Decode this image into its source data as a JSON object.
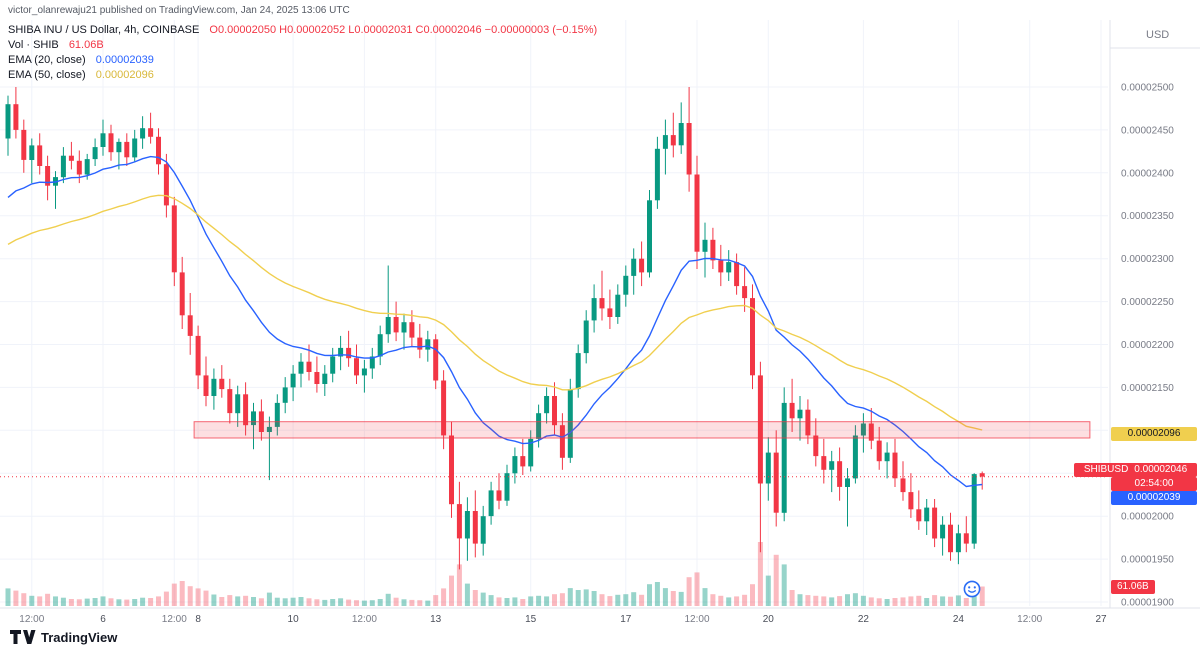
{
  "attribution": "victor_olanrewaju21 published on TradingView.com, Jan 24, 2025 13:06 UTC",
  "watermark": "TradingView",
  "legend": {
    "symbol_title": "SHIBA INU / US Dollar, 4h, COINBASE",
    "ohlc_string": "O0.00002050  H0.00002052  L0.00002031  C0.00002046  −0.00000003 (−0.15%)",
    "volume_label": "Vol · SHIB",
    "volume_value": "61.06B",
    "ema20_label": "EMA (20, close)",
    "ema20_value": "0.00002039",
    "ema50_label": "EMA (50, close)",
    "ema50_value": "0.00002096"
  },
  "price_axis": {
    "currency_label": "USD",
    "labels": [
      {
        "p": 2500,
        "label": "0.00002500"
      },
      {
        "p": 2450,
        "label": "0.00002450"
      },
      {
        "p": 2400,
        "label": "0.00002400"
      },
      {
        "p": 2350,
        "label": "0.00002350"
      },
      {
        "p": 2300,
        "label": "0.00002300"
      },
      {
        "p": 2250,
        "label": "0.00002250"
      },
      {
        "p": 2200,
        "label": "0.00002200"
      },
      {
        "p": 2150,
        "label": "0.00002150"
      },
      {
        "p": 2000,
        "label": "0.00002000"
      },
      {
        "p": 1950,
        "label": "0.00001950"
      },
      {
        "p": 1900,
        "label": "0.00001900"
      }
    ],
    "ema50_badge": {
      "text": "0.00002096"
    },
    "price_badge": {
      "symbol": "SHIBUSD",
      "text": "0.00002046"
    },
    "countdown_badge": {
      "text": "02:54:00"
    },
    "ema20_badge": {
      "text": "0.00002039"
    },
    "volume_badge": {
      "text": "61.06B"
    }
  },
  "time_axis": {
    "ticks": [
      {
        "i": 3,
        "label": "12:00",
        "minor": true
      },
      {
        "i": 12,
        "label": "6"
      },
      {
        "i": 21,
        "label": "12:00",
        "minor": true
      },
      {
        "i": 24,
        "label": "8"
      },
      {
        "i": 36,
        "label": "10"
      },
      {
        "i": 45,
        "label": "12:00",
        "minor": true
      },
      {
        "i": 54,
        "label": "13"
      },
      {
        "i": 66,
        "label": "15"
      },
      {
        "i": 78,
        "label": "17"
      },
      {
        "i": 87,
        "label": "12:00",
        "minor": true
      },
      {
        "i": 96,
        "label": "20"
      },
      {
        "i": 108,
        "label": "22"
      },
      {
        "i": 120,
        "label": "24"
      },
      {
        "i": 129,
        "label": "12:00",
        "minor": true
      },
      {
        "i": 138,
        "label": "27"
      }
    ]
  },
  "colors": {
    "up": "#089981",
    "down": "#f23645",
    "ema20": "#2962ff",
    "ema50": "#f0cf4f",
    "grid": "#f0f3fa",
    "axis_text": "#787b86",
    "day_text": "#4a4e59",
    "separator": "#e0e3eb",
    "zone_fill": "rgba(242,54,69,0.16)",
    "zone_border": "#f23645"
  },
  "chart_data": {
    "type": "candlestick",
    "title": "SHIBA INU / US Dollar, 4h, COINBASE",
    "symbol": "SHIBUSD",
    "timeframe": "4h",
    "x_range": "Jan 4 2025 00:00 UTC – Jan 24 2025 16:00 UTC, one candle = 4h",
    "price_unit": "1e-8 USD (value 2046 represents 0.00002046)",
    "axis_range": {
      "min": "0.00001900",
      "max": "0.00002500",
      "step": "0.00000050"
    },
    "grid_prices": [
      2500,
      2450,
      2400,
      2350,
      2300,
      2250,
      2200,
      2150,
      2100,
      2050,
      2000,
      1950,
      1900
    ],
    "current_price": 2046,
    "last_volume_label": "61.06B",
    "zone": {
      "from_i": 23.5,
      "to_i": 136.6,
      "top_price": 2110,
      "bottom_price": 2091,
      "description": "horizontal supply/resistance box around 0.00002091–0.00002110"
    },
    "overlays": [
      {
        "name": "EMA20",
        "period": 20,
        "color": "#2962ff",
        "seed": 2360,
        "last": "0.00002039"
      },
      {
        "name": "EMA50",
        "period": 50,
        "color": "#f0cf4f",
        "seed": 2310,
        "last": "0.00002096"
      }
    ],
    "candles_format": "[open, high, low, close, volume_billions]",
    "candles": [
      [
        2440,
        2490,
        2420,
        2480,
        55
      ],
      [
        2480,
        2500,
        2440,
        2450,
        48
      ],
      [
        2450,
        2462,
        2400,
        2415,
        40
      ],
      [
        2415,
        2440,
        2388,
        2432,
        32
      ],
      [
        2432,
        2446,
        2398,
        2408,
        30
      ],
      [
        2408,
        2420,
        2368,
        2385,
        38
      ],
      [
        2385,
        2402,
        2358,
        2395,
        30
      ],
      [
        2395,
        2430,
        2388,
        2420,
        26
      ],
      [
        2420,
        2436,
        2404,
        2414,
        22
      ],
      [
        2414,
        2426,
        2388,
        2398,
        21
      ],
      [
        2398,
        2422,
        2392,
        2416,
        23
      ],
      [
        2416,
        2440,
        2408,
        2430,
        25
      ],
      [
        2430,
        2462,
        2420,
        2446,
        30
      ],
      [
        2446,
        2456,
        2414,
        2424,
        24
      ],
      [
        2424,
        2440,
        2404,
        2436,
        21
      ],
      [
        2436,
        2446,
        2408,
        2418,
        20
      ],
      [
        2418,
        2450,
        2412,
        2440,
        22
      ],
      [
        2440,
        2466,
        2428,
        2452,
        26
      ],
      [
        2452,
        2470,
        2434,
        2442,
        25
      ],
      [
        2442,
        2452,
        2398,
        2410,
        30
      ],
      [
        2410,
        2422,
        2348,
        2362,
        45
      ],
      [
        2362,
        2372,
        2268,
        2284,
        70
      ],
      [
        2284,
        2302,
        2218,
        2234,
        78
      ],
      [
        2234,
        2260,
        2188,
        2210,
        62
      ],
      [
        2210,
        2222,
        2148,
        2164,
        55
      ],
      [
        2164,
        2186,
        2128,
        2140,
        48
      ],
      [
        2140,
        2172,
        2124,
        2160,
        36
      ],
      [
        2160,
        2176,
        2138,
        2148,
        28
      ],
      [
        2148,
        2160,
        2108,
        2120,
        34
      ],
      [
        2120,
        2152,
        2104,
        2142,
        30
      ],
      [
        2142,
        2156,
        2094,
        2106,
        32
      ],
      [
        2106,
        2132,
        2078,
        2122,
        28
      ],
      [
        2122,
        2136,
        2088,
        2098,
        24
      ],
      [
        2098,
        2116,
        2042,
        2104,
        42
      ],
      [
        2104,
        2142,
        2094,
        2132,
        26
      ],
      [
        2132,
        2162,
        2120,
        2150,
        24
      ],
      [
        2150,
        2176,
        2134,
        2166,
        26
      ],
      [
        2166,
        2190,
        2150,
        2180,
        28
      ],
      [
        2180,
        2200,
        2158,
        2168,
        24
      ],
      [
        2168,
        2186,
        2144,
        2154,
        21
      ],
      [
        2154,
        2176,
        2140,
        2166,
        19
      ],
      [
        2166,
        2196,
        2156,
        2186,
        22
      ],
      [
        2186,
        2210,
        2170,
        2196,
        24
      ],
      [
        2196,
        2216,
        2174,
        2184,
        20
      ],
      [
        2184,
        2200,
        2154,
        2164,
        18
      ],
      [
        2164,
        2182,
        2144,
        2172,
        17
      ],
      [
        2172,
        2196,
        2160,
        2186,
        18
      ],
      [
        2186,
        2222,
        2176,
        2212,
        22
      ],
      [
        2212,
        2292,
        2202,
        2232,
        38
      ],
      [
        2232,
        2250,
        2204,
        2214,
        26
      ],
      [
        2214,
        2236,
        2194,
        2226,
        21
      ],
      [
        2226,
        2240,
        2198,
        2208,
        19
      ],
      [
        2208,
        2224,
        2184,
        2194,
        18
      ],
      [
        2194,
        2216,
        2180,
        2206,
        17
      ],
      [
        2206,
        2212,
        2148,
        2158,
        34
      ],
      [
        2158,
        2170,
        2078,
        2094,
        55
      ],
      [
        2094,
        2110,
        1998,
        2014,
        95
      ],
      [
        2014,
        2040,
        1938,
        1974,
        130
      ],
      [
        1974,
        2022,
        1948,
        2006,
        70
      ],
      [
        2006,
        2030,
        1952,
        1968,
        50
      ],
      [
        1968,
        2012,
        1954,
        2000,
        42
      ],
      [
        2000,
        2040,
        1990,
        2030,
        34
      ],
      [
        2030,
        2050,
        2008,
        2018,
        27
      ],
      [
        2018,
        2060,
        2012,
        2050,
        25
      ],
      [
        2050,
        2080,
        2038,
        2070,
        27
      ],
      [
        2070,
        2090,
        2048,
        2058,
        22
      ],
      [
        2058,
        2100,
        2052,
        2090,
        30
      ],
      [
        2090,
        2130,
        2080,
        2120,
        32
      ],
      [
        2120,
        2150,
        2108,
        2140,
        30
      ],
      [
        2140,
        2156,
        2094,
        2106,
        37
      ],
      [
        2106,
        2120,
        2054,
        2068,
        40
      ],
      [
        2068,
        2160,
        2062,
        2148,
        56
      ],
      [
        2148,
        2200,
        2138,
        2190,
        50
      ],
      [
        2190,
        2240,
        2178,
        2228,
        52
      ],
      [
        2228,
        2270,
        2214,
        2254,
        47
      ],
      [
        2254,
        2286,
        2228,
        2242,
        37
      ],
      [
        2242,
        2264,
        2218,
        2232,
        31
      ],
      [
        2232,
        2270,
        2224,
        2258,
        35
      ],
      [
        2258,
        2292,
        2244,
        2280,
        37
      ],
      [
        2280,
        2312,
        2258,
        2300,
        43
      ],
      [
        2300,
        2320,
        2268,
        2284,
        35
      ],
      [
        2284,
        2380,
        2278,
        2368,
        68
      ],
      [
        2368,
        2442,
        2358,
        2428,
        75
      ],
      [
        2428,
        2462,
        2398,
        2444,
        56
      ],
      [
        2444,
        2470,
        2418,
        2432,
        47
      ],
      [
        2432,
        2482,
        2422,
        2458,
        44
      ],
      [
        2458,
        2500,
        2378,
        2398,
        90
      ],
      [
        2398,
        2420,
        2288,
        2308,
        105
      ],
      [
        2308,
        2342,
        2278,
        2322,
        56
      ],
      [
        2322,
        2336,
        2288,
        2298,
        37
      ],
      [
        2298,
        2316,
        2268,
        2284,
        32
      ],
      [
        2284,
        2310,
        2274,
        2296,
        27
      ],
      [
        2296,
        2306,
        2258,
        2268,
        30
      ],
      [
        2268,
        2290,
        2238,
        2254,
        35
      ],
      [
        2254,
        2270,
        2148,
        2164,
        68
      ],
      [
        2164,
        2180,
        1958,
        2038,
        200
      ],
      [
        2038,
        2092,
        2018,
        2074,
        95
      ],
      [
        2074,
        2100,
        1988,
        2004,
        160
      ],
      [
        2004,
        2150,
        1994,
        2132,
        130
      ],
      [
        2132,
        2160,
        2098,
        2114,
        50
      ],
      [
        2114,
        2140,
        2088,
        2124,
        37
      ],
      [
        2124,
        2136,
        2084,
        2094,
        34
      ],
      [
        2094,
        2114,
        2058,
        2070,
        32
      ],
      [
        2070,
        2090,
        2038,
        2054,
        30
      ],
      [
        2054,
        2076,
        2028,
        2064,
        27
      ],
      [
        2064,
        2080,
        2018,
        2034,
        31
      ],
      [
        2034,
        2056,
        1988,
        2044,
        37
      ],
      [
        2044,
        2106,
        2038,
        2094,
        40
      ],
      [
        2094,
        2120,
        2074,
        2108,
        32
      ],
      [
        2108,
        2126,
        2078,
        2088,
        27
      ],
      [
        2088,
        2104,
        2054,
        2064,
        24
      ],
      [
        2064,
        2086,
        2044,
        2074,
        22
      ],
      [
        2074,
        2090,
        2034,
        2044,
        25
      ],
      [
        2044,
        2064,
        2018,
        2028,
        27
      ],
      [
        2028,
        2050,
        1998,
        2008,
        30
      ],
      [
        2008,
        2030,
        1984,
        1994,
        32
      ],
      [
        1994,
        2020,
        1978,
        2010,
        25
      ],
      [
        2010,
        2020,
        1964,
        1974,
        34
      ],
      [
        1974,
        2000,
        1954,
        1990,
        30
      ],
      [
        1990,
        2004,
        1948,
        1958,
        29
      ],
      [
        1958,
        1990,
        1944,
        1980,
        33
      ],
      [
        1980,
        2000,
        1958,
        1968,
        25
      ],
      [
        1968,
        2050,
        1962,
        2049,
        43
      ],
      [
        2050,
        2052,
        2031,
        2046,
        61.06
      ]
    ]
  }
}
